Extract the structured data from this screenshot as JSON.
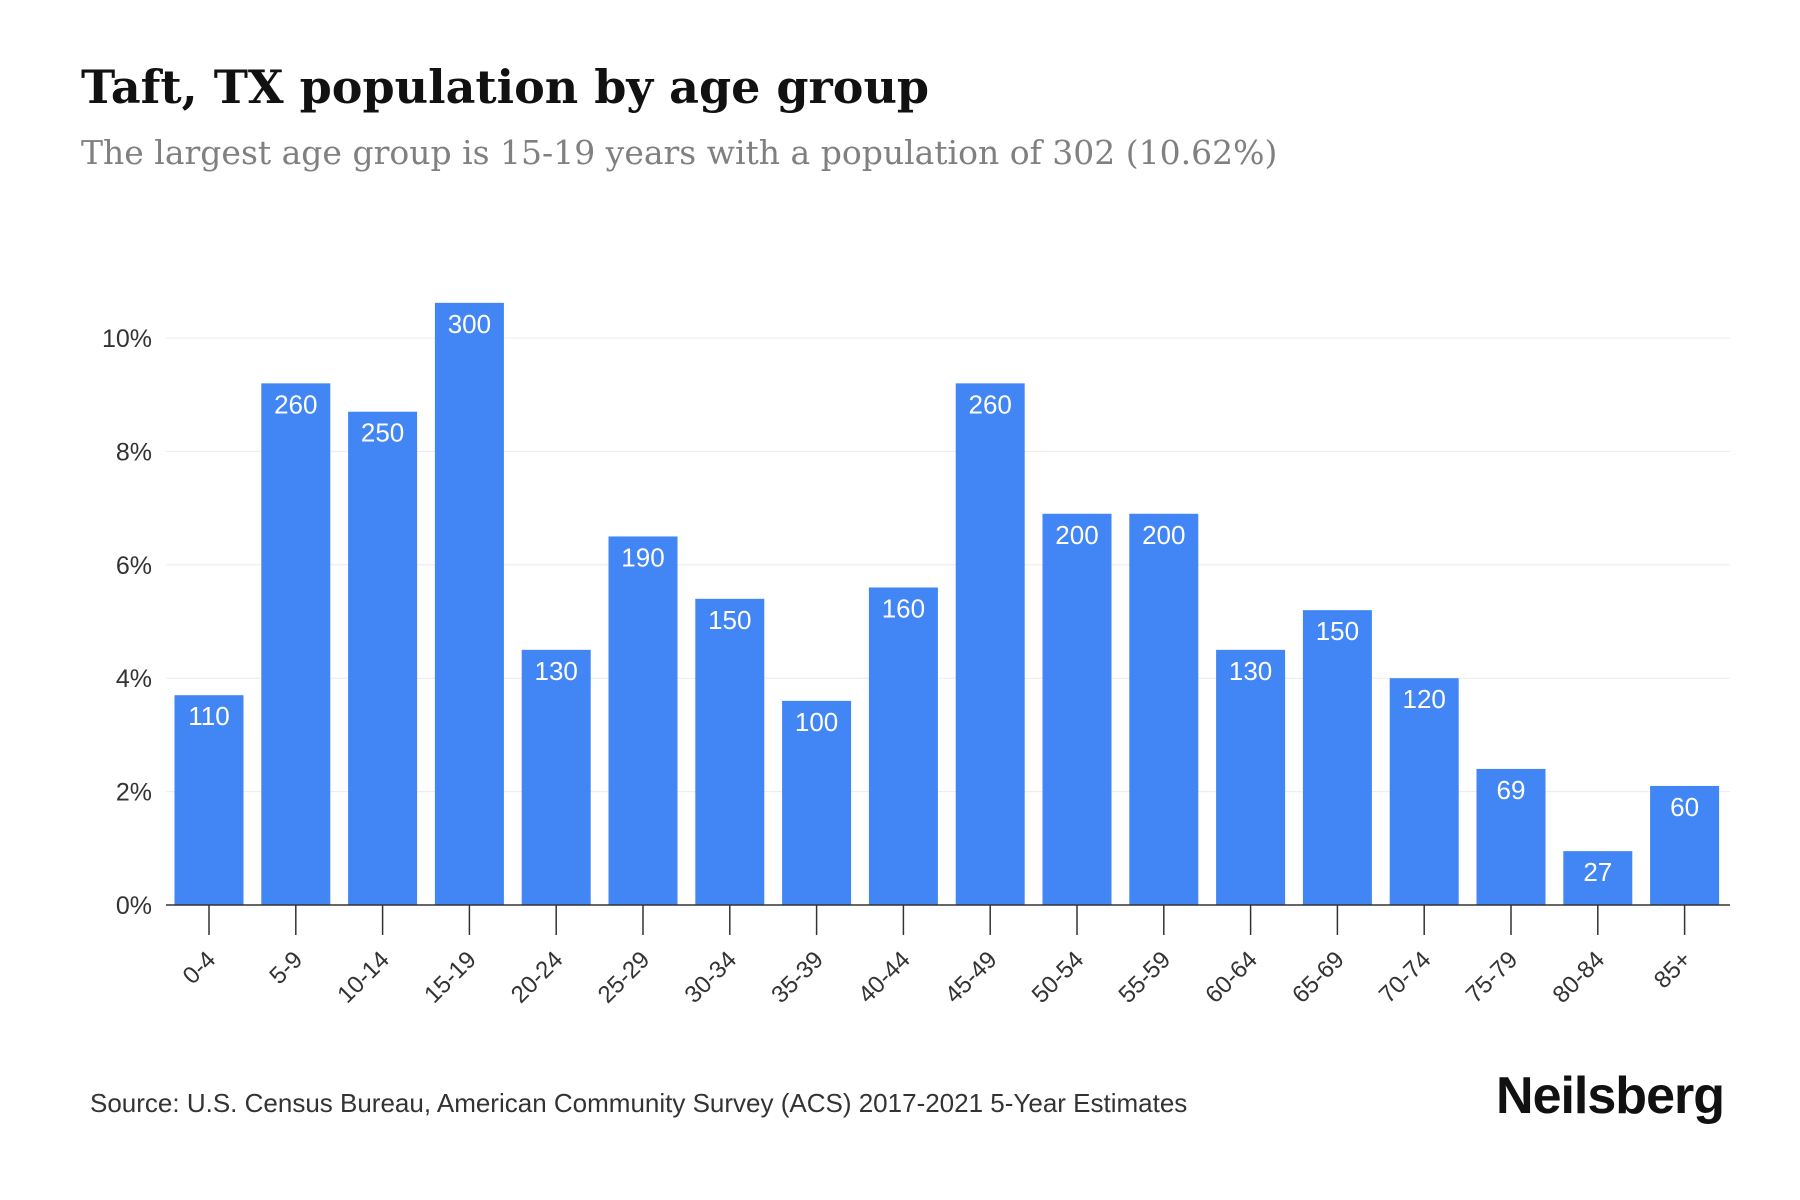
{
  "header": {
    "title": "Taft, TX population by age group",
    "subtitle": "The largest age group is 15-19 years with a population of 302 (10.62%)"
  },
  "footer": {
    "source": "Source: U.S. Census Bureau, American Community Survey (ACS) 2017-2021 5-Year Estimates",
    "brand": "Neilsberg"
  },
  "colors": {
    "bar": "#4285f4",
    "bar_label": "#ffffff",
    "grid": "#ececec",
    "axis": "#333333",
    "tick_text": "#333333"
  },
  "chart_data": {
    "type": "bar",
    "categories": [
      "0-4",
      "5-9",
      "10-14",
      "15-19",
      "20-24",
      "25-29",
      "30-34",
      "35-39",
      "40-44",
      "45-49",
      "50-54",
      "55-59",
      "60-64",
      "65-69",
      "70-74",
      "75-79",
      "80-84",
      "85+"
    ],
    "values": [
      3.7,
      9.2,
      8.7,
      10.62,
      4.5,
      6.5,
      5.4,
      3.6,
      5.6,
      9.2,
      6.9,
      6.9,
      4.5,
      5.2,
      4.0,
      2.4,
      0.95,
      2.1
    ],
    "labels": [
      "110",
      "260",
      "250",
      "300",
      "130",
      "190",
      "150",
      "100",
      "160",
      "260",
      "200",
      "200",
      "130",
      "150",
      "120",
      "69",
      "27",
      "60"
    ],
    "yticks": [
      "0%",
      "2%",
      "4%",
      "6%",
      "8%",
      "10%"
    ],
    "ytick_values": [
      0,
      2,
      4,
      6,
      8,
      10
    ],
    "ylim": [
      0,
      10.62
    ],
    "grid": true
  }
}
